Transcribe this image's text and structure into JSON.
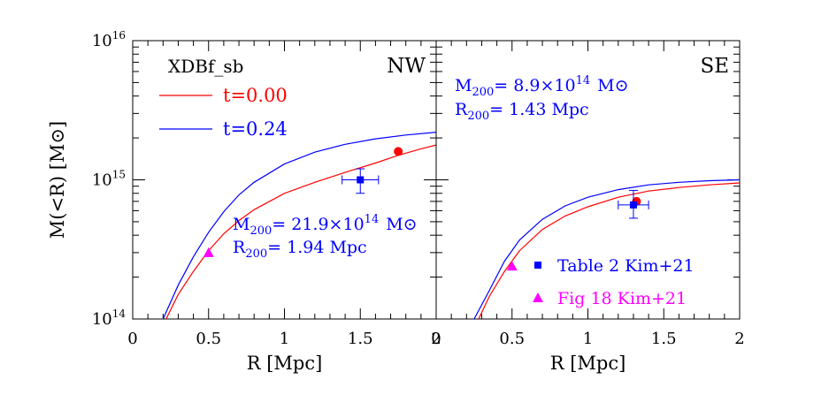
{
  "chart_data": [
    {
      "type": "line",
      "panel_id": "left",
      "xlabel": "R [Mpc]",
      "ylabel": "M(<R) [M⊙]",
      "xlim": [
        0,
        2
      ],
      "ylim": [
        100000000000000.0,
        1e+16
      ],
      "yscale": "log",
      "x_ticks": [
        "0",
        "0.5",
        "1",
        "1.5",
        "2"
      ],
      "y_ticks": [
        {
          "base": "10",
          "exp": "14",
          "value": 100000000000000.0
        },
        {
          "base": "10",
          "exp": "15",
          "value": 1000000000000000.0
        },
        {
          "base": "10",
          "exp": "16",
          "value": 1e+16
        }
      ],
      "annotations": {
        "dataset": "XDBf_sb",
        "region": "NW",
        "mass_label": "M",
        "mass_sub": "200",
        "mass_text": "= 21.9×10",
        "mass_exp": "14",
        "mass_unit": "M⊙",
        "radius_label": "R",
        "radius_sub": "200",
        "radius_text": "= 1.94 Mpc"
      },
      "legend": [
        {
          "name": "t=0.00",
          "color": "#ff0000"
        },
        {
          "name": "t=0.24",
          "color": "#0000ff"
        }
      ],
      "series": [
        {
          "name": "t=0.00",
          "color": "#ff0000",
          "x": [
            0.22,
            0.3,
            0.4,
            0.5,
            0.6,
            0.7,
            0.8,
            1.0,
            1.2,
            1.4,
            1.6,
            1.75,
            1.9,
            2.0
          ],
          "y": [
            100000000000000.0,
            150000000000000.0,
            220000000000000.0,
            310000000000000.0,
            410000000000000.0,
            510000000000000.0,
            610000000000000.0,
            800000000000000.0,
            960000000000000.0,
            1130000000000000.0,
            1320000000000000.0,
            1500000000000000.0,
            1670000000000000.0,
            1780000000000000.0
          ]
        },
        {
          "name": "t=0.24",
          "color": "#0000ff",
          "x": [
            0.2,
            0.3,
            0.4,
            0.5,
            0.6,
            0.7,
            0.8,
            1.0,
            1.2,
            1.4,
            1.6,
            1.8,
            2.0
          ],
          "y": [
            100000000000000.0,
            175000000000000.0,
            280000000000000.0,
            420000000000000.0,
            590000000000000.0,
            780000000000000.0,
            960000000000000.0,
            1300000000000000.0,
            1580000000000000.0,
            1800000000000000.0,
            1970000000000000.0,
            2100000000000000.0,
            2200000000000000.0
          ]
        }
      ],
      "markers": [
        {
          "kind": "circle",
          "color": "#ff0000",
          "x": 1.75,
          "y": 1600000000000000.0
        },
        {
          "kind": "square",
          "color": "#0000ff",
          "x": 1.5,
          "y": 1000000000000000.0,
          "xerr": [
            0.12,
            0.12
          ],
          "yerr_low": 800000000000000.0,
          "yerr_high": 1200000000000000.0
        },
        {
          "kind": "triangle",
          "color": "#ff00ff",
          "x": 0.5,
          "y": 300000000000000.0
        }
      ]
    },
    {
      "type": "line",
      "panel_id": "right",
      "xlabel": "R [Mpc]",
      "xlim": [
        0,
        2
      ],
      "ylim": [
        100000000000000.0,
        1e+16
      ],
      "yscale": "log",
      "x_ticks": [
        "0",
        "0.5",
        "1",
        "1.5",
        "2"
      ],
      "annotations": {
        "region": "SE",
        "mass_label": "M",
        "mass_sub": "200",
        "mass_text": "=   8.9×10",
        "mass_exp": "14",
        "mass_unit": "M⊙",
        "radius_label": "R",
        "radius_sub": "200",
        "radius_text": "= 1.43 Mpc"
      },
      "legend": [
        {
          "name": "Table 2 Kim+21",
          "color": "#0000ff",
          "marker": "square"
        },
        {
          "name": "Fig 18 Kim+21",
          "color": "#ff00ff",
          "marker": "triangle"
        }
      ],
      "series": [
        {
          "name": "t=0.00",
          "color": "#ff0000",
          "x": [
            0.28,
            0.35,
            0.45,
            0.55,
            0.7,
            0.85,
            1.0,
            1.2,
            1.4,
            1.6,
            1.8,
            2.0
          ],
          "y": [
            100000000000000.0,
            145000000000000.0,
            220000000000000.0,
            310000000000000.0,
            440000000000000.0,
            550000000000000.0,
            640000000000000.0,
            750000000000000.0,
            830000000000000.0,
            880000000000000.0,
            920000000000000.0,
            950000000000000.0
          ]
        },
        {
          "name": "t=0.24",
          "color": "#0000ff",
          "x": [
            0.25,
            0.35,
            0.45,
            0.55,
            0.7,
            0.85,
            1.0,
            1.2,
            1.4,
            1.6,
            1.8,
            2.0
          ],
          "y": [
            100000000000000.0,
            160000000000000.0,
            260000000000000.0,
            370000000000000.0,
            520000000000000.0,
            650000000000000.0,
            750000000000000.0,
            850000000000000.0,
            920000000000000.0,
            960000000000000.0,
            985000000000000.0,
            1000000000000000.0
          ]
        }
      ],
      "markers": [
        {
          "kind": "circle",
          "color": "#ff0000",
          "x": 1.32,
          "y": 700000000000000.0
        },
        {
          "kind": "square",
          "color": "#0000ff",
          "x": 1.3,
          "y": 660000000000000.0,
          "xerr": [
            0.1,
            0.1
          ],
          "yerr_low": 530000000000000.0,
          "yerr_high": 840000000000000.0
        },
        {
          "kind": "triangle",
          "color": "#ff00ff",
          "x": 0.5,
          "y": 240000000000000.0
        }
      ]
    }
  ]
}
